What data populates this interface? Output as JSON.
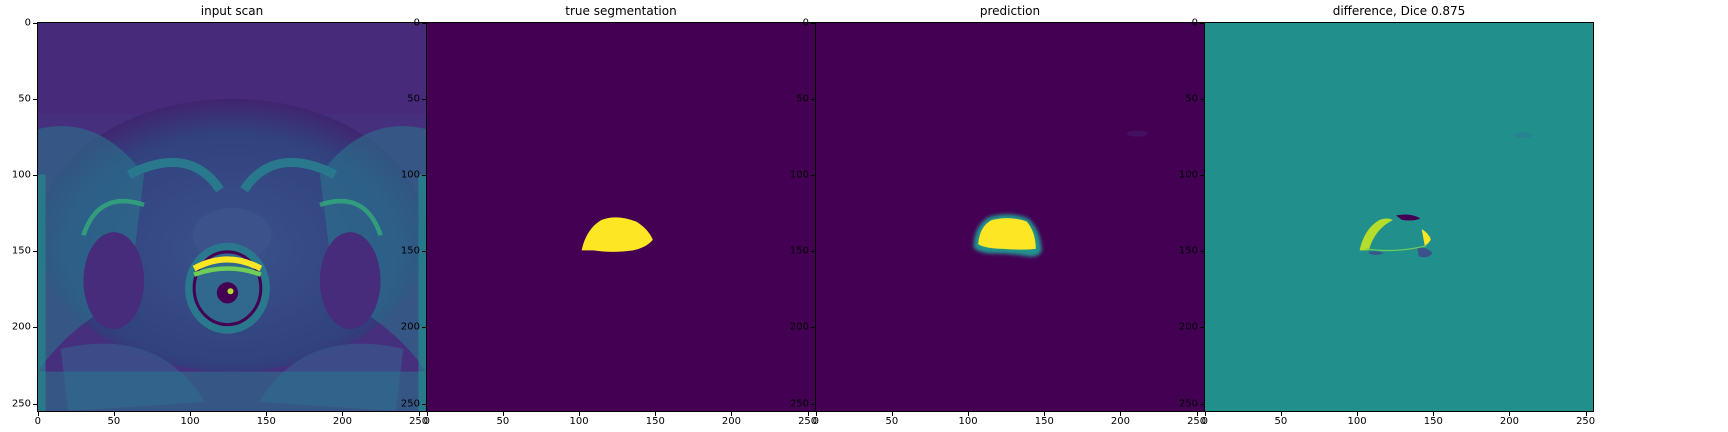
{
  "panels": [
    {
      "title": "input scan",
      "image": "pelvic-mri-scan"
    },
    {
      "title": "true segmentation",
      "image": "ground-truth-mask"
    },
    {
      "title": "prediction",
      "image": "predicted-mask"
    },
    {
      "title": "difference, Dice 0.875",
      "image": "difference-map"
    }
  ],
  "axes": {
    "y_ticks": [
      "0",
      "50",
      "100",
      "150",
      "200",
      "250"
    ],
    "x_ticks": [
      "0",
      "50",
      "100",
      "150",
      "200",
      "250"
    ],
    "range": [
      0,
      256
    ]
  },
  "colors": {
    "viridis_dark": "#440154",
    "viridis_mid": "#21908d",
    "viridis_yellow": "#fde725"
  }
}
